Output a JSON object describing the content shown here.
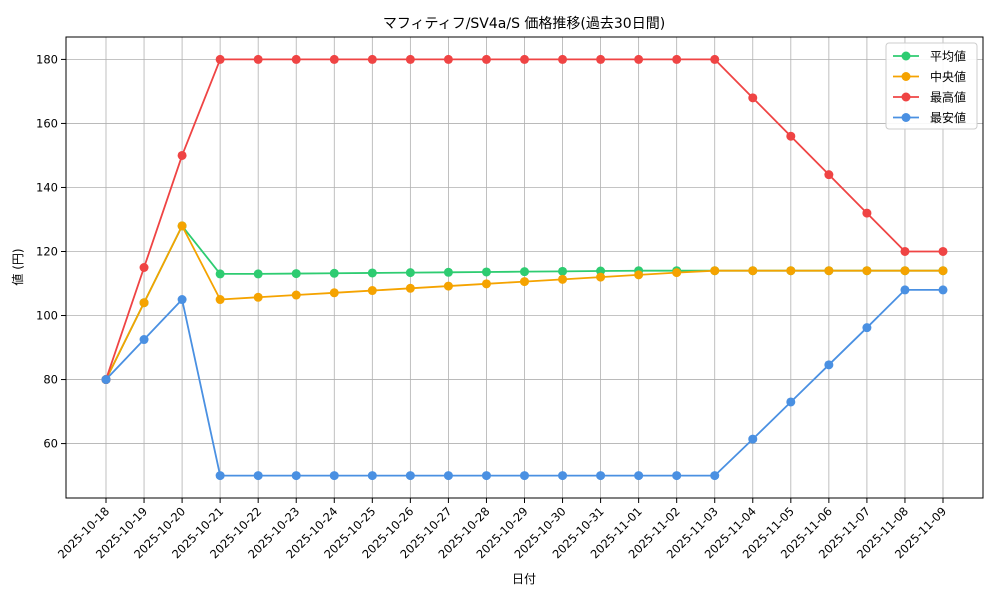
{
  "chart_data": {
    "type": "line",
    "title": "マフィティフ/SV4a/S 価格推移(過去30日間)",
    "xlabel": "日付",
    "ylabel": "値 (円)",
    "ylim": [
      43,
      187
    ],
    "yticks": [
      60,
      80,
      100,
      120,
      140,
      160,
      180
    ],
    "grid": true,
    "legend_position": "top-right",
    "categories": [
      "2025-10-18",
      "2025-10-19",
      "2025-10-20",
      "2025-10-21",
      "2025-10-22",
      "2025-10-23",
      "2025-10-24",
      "2025-10-25",
      "2025-10-26",
      "2025-10-27",
      "2025-10-28",
      "2025-10-29",
      "2025-10-30",
      "2025-10-31",
      "2025-11-01",
      "2025-11-02",
      "2025-11-03",
      "2025-11-04",
      "2025-11-05",
      "2025-11-06",
      "2025-11-07",
      "2025-11-08",
      "2025-11-09"
    ],
    "series": [
      {
        "name": "平均値",
        "color": "#2ecc71",
        "values": [
          80,
          104,
          128,
          113,
          113,
          113.1,
          113.2,
          113.3,
          113.4,
          113.5,
          113.6,
          113.7,
          113.8,
          113.9,
          114,
          114,
          114,
          114,
          114,
          114,
          114,
          114,
          114
        ]
      },
      {
        "name": "中央値",
        "color": "#f5a300",
        "values": [
          80,
          104,
          128,
          105,
          105.7,
          106.4,
          107.1,
          107.8,
          108.5,
          109.2,
          109.9,
          110.6,
          111.3,
          112,
          112.7,
          113.4,
          114,
          114,
          114,
          114,
          114,
          114,
          114
        ]
      },
      {
        "name": "最高値",
        "color": "#ef4444",
        "values": [
          80,
          115,
          150,
          180,
          180,
          180,
          180,
          180,
          180,
          180,
          180,
          180,
          180,
          180,
          180,
          180,
          180,
          168,
          156,
          144,
          132,
          120,
          120
        ]
      },
      {
        "name": "最安値",
        "color": "#4a90e2",
        "values": [
          80,
          92.5,
          105,
          50,
          50,
          50,
          50,
          50,
          50,
          50,
          50,
          50,
          50,
          50,
          50,
          50,
          50,
          61.4,
          73,
          84.6,
          96.2,
          108,
          108
        ]
      }
    ]
  }
}
